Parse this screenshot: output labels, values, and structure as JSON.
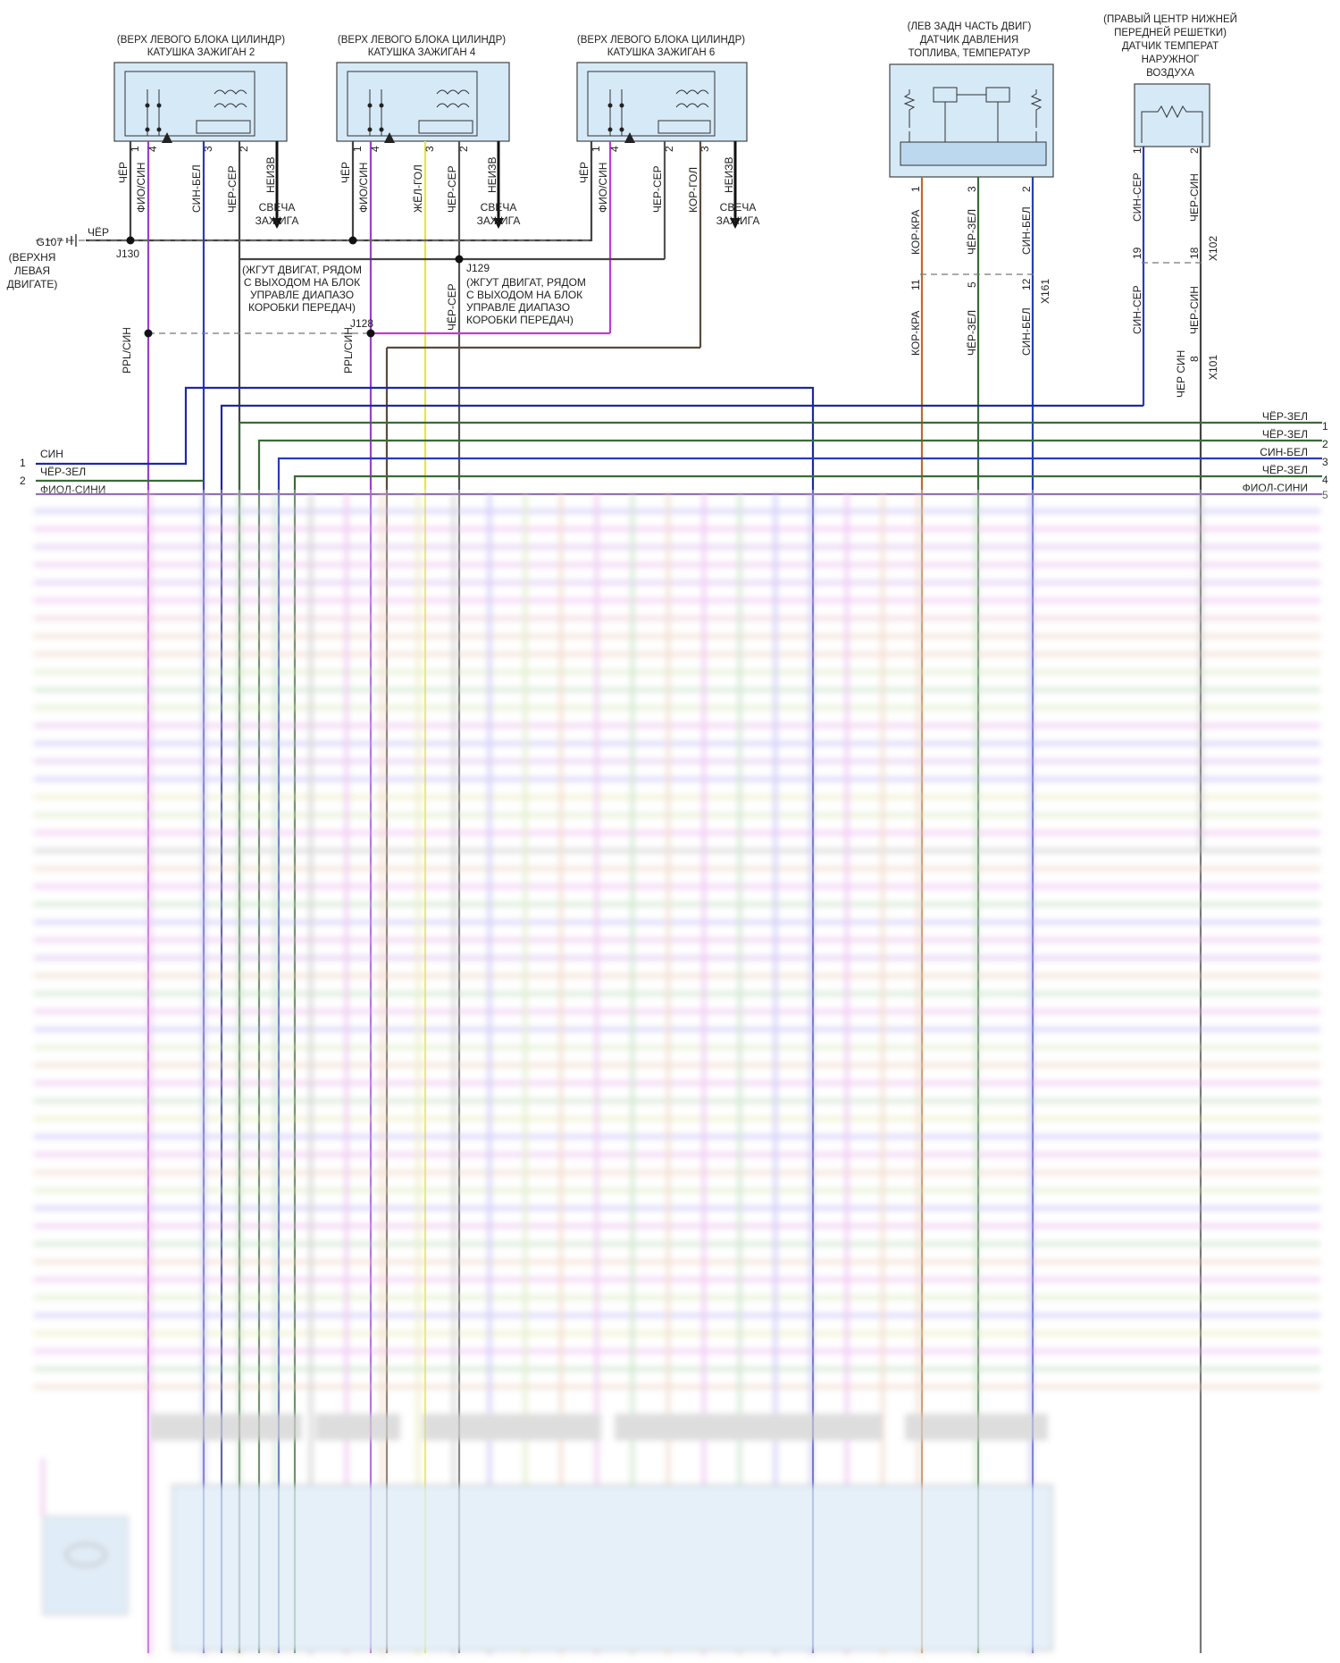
{
  "colors": {
    "blue": "#1b2aa0",
    "purple": "#8a2fc0",
    "violet": "#c03ad6",
    "green_dark": "#3b6a3a",
    "olive": "#6f8a3f",
    "gray_dark": "#555555",
    "brown": "#5c4a3a",
    "orange": "#c06a28",
    "yellow": "#e8e24a",
    "block_fill": "#d6e9f7"
  },
  "coils": [
    {
      "header_line1": "(ВЕРХ ЛЕВОГО БЛОКА ЦИЛИНДР)",
      "header_line2": "КАТУШКА ЗАЖИГАН 2",
      "pins": [
        {
          "num": "1",
          "wire": "ЧЁР"
        },
        {
          "num": "4",
          "wire": "ФИО/СИН"
        },
        {
          "num": "3",
          "wire": "СИН-БЕЛ"
        },
        {
          "num": "2",
          "wire": "ЧЕР-СЕР"
        }
      ],
      "spark_wire": "НЕИЗВ",
      "spark_label_1": "СВЕЧА",
      "spark_label_2": "ЗАЖИГА"
    },
    {
      "header_line1": "(ВЕРХ ЛЕВОГО БЛОКА ЦИЛИНДР)",
      "header_line2": "КАТУШКА ЗАЖИГАН 4",
      "pins": [
        {
          "num": "1",
          "wire": "ЧЁР"
        },
        {
          "num": "4",
          "wire": "ФИО/СИН"
        },
        {
          "num": "3",
          "wire": "ЖЁЛ-ГОЛ"
        },
        {
          "num": "2",
          "wire": "ЧЕР-СЕР"
        }
      ],
      "spark_wire": "НЕИЗВ",
      "spark_label_1": "СВЕЧА",
      "spark_label_2": "ЗАЖИГА"
    },
    {
      "header_line1": "(ВЕРХ ЛЕВОГО БЛОКА ЦИЛИНДР)",
      "header_line2": "КАТУШКА ЗАЖИГАН 6",
      "pins": [
        {
          "num": "1",
          "wire": "ЧЁР"
        },
        {
          "num": "4",
          "wire": "ФИО/СИН"
        },
        {
          "num": "2",
          "wire": "ЧЕР-СЕР"
        },
        {
          "num": "3",
          "wire": "КОР-ГОЛ"
        }
      ],
      "spark_wire": "НЕИЗВ",
      "spark_label_1": "СВЕЧА",
      "spark_label_2": "ЗАЖИГА"
    }
  ],
  "fuel_sensor": {
    "header_line1": "(ЛЕВ ЗАДН ЧАСТЬ ДВИГ)",
    "header_line2": "ДАТЧИК ДАВЛЕНИЯ",
    "header_line3": "ТОПЛИВА, ТЕМПЕРАТУР",
    "pins": [
      {
        "num": "1",
        "wire": "КОР-КРА",
        "x161_pin": "11",
        "wire_below": "КОР-КРА"
      },
      {
        "num": "3",
        "wire": "ЧЁР-ЗЕЛ",
        "x161_pin": "5",
        "wire_below": "ЧЁР-ЗЕЛ"
      },
      {
        "num": "2",
        "wire": "СИН-БЕЛ",
        "x161_pin": "12",
        "wire_below": "СИН-БЕЛ"
      }
    ],
    "connector": "X161"
  },
  "air_sensor": {
    "header_line1": "(ПРАВЫЙ ЦЕНТР НИЖНЕЙ",
    "header_line2": "ПЕРЕДНЕЙ РЕШЕТКИ)",
    "header_line3": "ДАТЧИК ТЕМПЕРАТ",
    "header_line4": "НАРУЖНОГ",
    "header_line5": "ВОЗДУХА",
    "pins": [
      {
        "num": "1",
        "wire": "СИН-СЕР",
        "x102_pin": "19",
        "wire_below": "СИН-СЕР"
      },
      {
        "num": "2",
        "wire": "ЧЕР-СИН",
        "x102_pin": "18",
        "wire_below": "ЧЕР-СИН"
      }
    ],
    "connector_x102": "X102",
    "x101_pin": "8",
    "connector_x101": "X101",
    "wire_x101": "ЧЕР СИН"
  },
  "ground": {
    "id": "G107",
    "loc_line1": "(ВЕРХНЯ",
    "loc_line2": "ЛЕВАЯ",
    "loc_line3": "ДВИГАТЕ)",
    "wire": "ЧЁР"
  },
  "splices": {
    "j130": "J130",
    "j129": "J129",
    "j128": "J128",
    "j129_note": [
      "(ЖГУТ ДВИГАТ, РЯДОМ",
      "С ВЫХОДОМ НА БЛОК",
      "УПРАВЛЕ ДИАПАЗО",
      "КОРОБКИ ПЕРЕДАЧ)"
    ],
    "j128_note": [
      "(ЖГУТ ДВИГАТ, РЯДОМ",
      "С ВЫХОДОМ НА БЛОК",
      "УПРАВЛЕ ДИАПАЗО",
      "КОРОБКИ ПЕРЕДАЧ)"
    ],
    "ppl_sin_left": "PPL/СИН",
    "ppl_sin_right": "PPL/СИН",
    "cher_ser_j129": "ЧЁР-СЕР"
  },
  "left_rows": [
    {
      "num": "1",
      "label": "СИН"
    },
    {
      "num": "2",
      "label": "ЧЁР-ЗЕЛ"
    },
    {
      "num": "",
      "label": "ФИОЛ-СИНИ"
    }
  ],
  "right_rows": [
    {
      "num": "1",
      "label": "ЧЁР-ЗЕЛ"
    },
    {
      "num": "2",
      "label": "ЧЁР-ЗЕЛ"
    },
    {
      "num": "3",
      "label": "СИН-БЕЛ"
    },
    {
      "num": "4",
      "label": "ЧЁР-ЗЕЛ"
    },
    {
      "num": "5",
      "label": "ФИОЛ-СИНИ"
    }
  ],
  "blurred_left_labels": [
    "СИН",
    "ФИОЛ-СИНИ"
  ]
}
